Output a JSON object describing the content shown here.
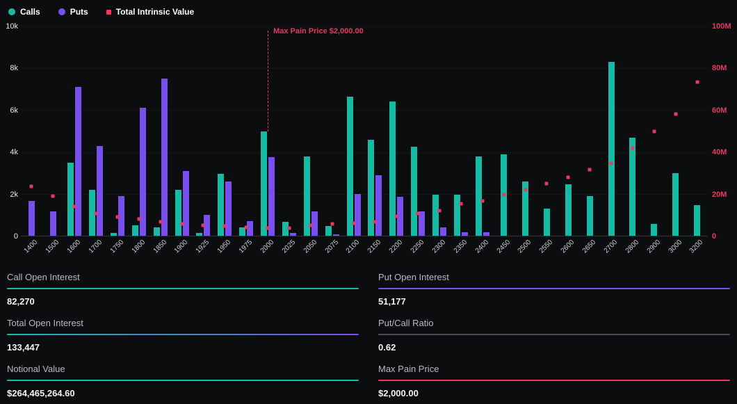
{
  "colors": {
    "background": "#0c0d0f",
    "calls": "#16bba6",
    "puts": "#7a4ff0",
    "intrinsic": "#e8395e",
    "neutral_line": "#4d4d58"
  },
  "legend": {
    "calls": "Calls",
    "puts": "Puts",
    "intrinsic": "Total Intrinsic Value"
  },
  "chart_data": {
    "type": "bar",
    "title": "",
    "xlabel": "",
    "ylabel": "",
    "grid": false,
    "legend_position": "top-left",
    "categories": [
      "1400",
      "1500",
      "1600",
      "1700",
      "1750",
      "1800",
      "1850",
      "1900",
      "1925",
      "1950",
      "1975",
      "2000",
      "2025",
      "2050",
      "2075",
      "2100",
      "2150",
      "2200",
      "2250",
      "2300",
      "2350",
      "2400",
      "2450",
      "2500",
      "2550",
      "2600",
      "2650",
      "2700",
      "2800",
      "2900",
      "3000",
      "3200"
    ],
    "series": [
      {
        "name": "Calls",
        "type": "bar",
        "axis": "left",
        "values": [
          0,
          0,
          3500,
          2200,
          150,
          500,
          400,
          2200,
          150,
          2950,
          400,
          5000,
          650,
          3800,
          450,
          6650,
          4600,
          6400,
          4250,
          1950,
          1950,
          3800,
          3900,
          2600,
          1300,
          2450,
          1900,
          8300,
          4700,
          550,
          3000,
          1450
        ]
      },
      {
        "name": "Puts",
        "type": "bar",
        "axis": "left",
        "values": [
          1650,
          1150,
          7100,
          4300,
          1900,
          6100,
          7500,
          3100,
          1000,
          2600,
          700,
          3750,
          120,
          1150,
          60,
          2000,
          2900,
          1850,
          1150,
          400,
          160,
          160,
          0,
          0,
          0,
          0,
          0,
          0,
          0,
          0,
          0,
          0
        ]
      },
      {
        "name": "Total Intrinsic Value",
        "type": "scatter",
        "axis": "right",
        "unit": "M",
        "values": [
          23.5,
          19,
          14,
          10.5,
          9,
          8,
          6.5,
          5.5,
          5,
          4.8,
          4,
          3.5,
          3.8,
          5,
          5.7,
          6,
          6.6,
          9.3,
          10.5,
          12,
          15.2,
          16.5,
          19.5,
          22,
          25,
          28,
          31.5,
          34.5,
          42,
          50,
          58,
          73.5
        ]
      }
    ],
    "left_axis": {
      "min": 0,
      "max": 10000,
      "ticks": [
        "10k",
        "8k",
        "6k",
        "4k",
        "2k",
        "0"
      ]
    },
    "right_axis": {
      "min": 0,
      "max": 100,
      "unit": "M",
      "ticks": [
        "100M",
        "80M",
        "60M",
        "40M",
        "20M",
        "0"
      ]
    },
    "max_pain": {
      "strike": "2000",
      "label": "Max Pain Price $2,000.00"
    }
  },
  "stats": [
    {
      "label": "Call Open Interest",
      "value": "82,270",
      "accent": "calls"
    },
    {
      "label": "Put Open Interest",
      "value": "51,177",
      "accent": "puts"
    },
    {
      "label": "Total Open Interest",
      "value": "133,447",
      "accent": "mixed"
    },
    {
      "label": "Put/Call Ratio",
      "value": "0.62",
      "accent": "neutral"
    },
    {
      "label": "Notional Value",
      "value": "$264,465,264.60",
      "accent": "calls"
    },
    {
      "label": "Max Pain Price",
      "value": "$2,000.00",
      "accent": "intrinsic"
    }
  ]
}
